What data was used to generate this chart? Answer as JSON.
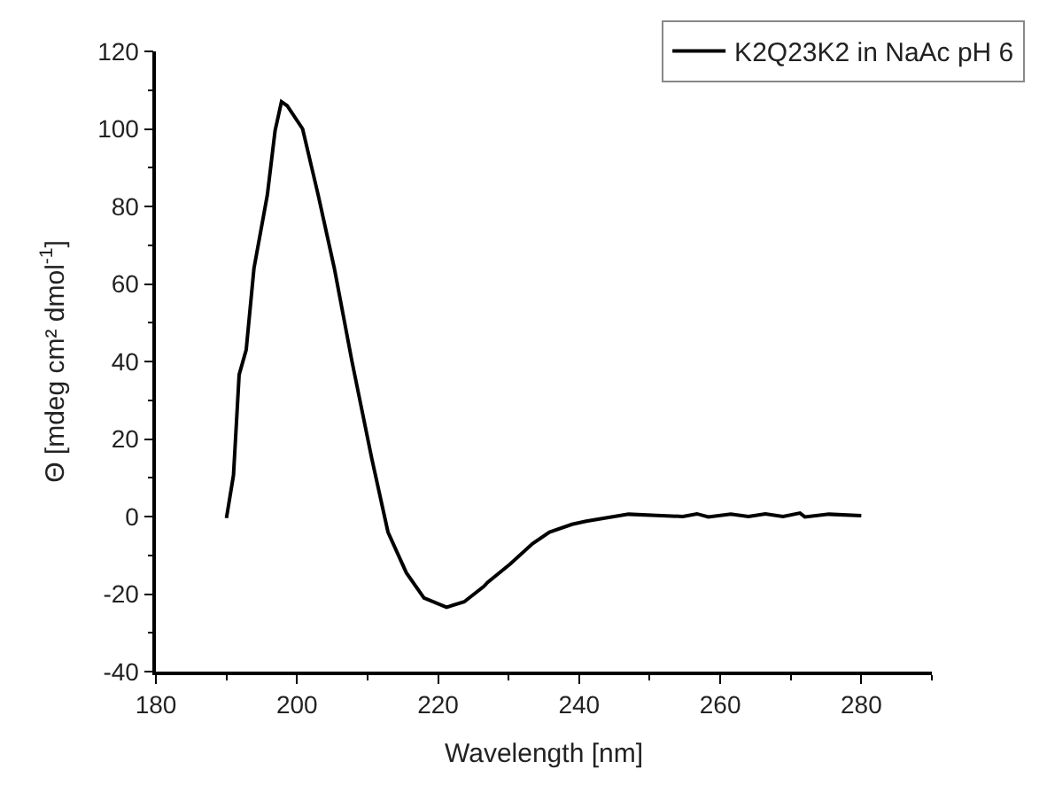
{
  "chart_data": {
    "type": "line",
    "xlabel": "Wavelength [nm]",
    "ylabel": "Θ [mdeg cm² dmol$^{-1}$]",
    "xlim": [
      180,
      290
    ],
    "xticks": [
      180,
      200,
      220,
      240,
      260,
      280
    ],
    "ylim": [
      -40,
      120
    ],
    "yticks": [
      -40,
      -20,
      0,
      20,
      40,
      60,
      80,
      100,
      120
    ],
    "legend": "top right",
    "series": [
      {
        "name": "K2Q23K2 in NaAc pH 6",
        "color": "#000000",
        "x": [
          190,
          191,
          191.8,
          192.8,
          193.9,
          195.8,
          196.9,
          197.8,
          198.6,
          200.8,
          203,
          205.3,
          207.8,
          210.6,
          212.9,
          215.5,
          218,
          221.2,
          223.7,
          226.5,
          227,
          230.2,
          233.4,
          235.8,
          239,
          241,
          247,
          251,
          254.7,
          256.7,
          258.3,
          261.5,
          264,
          266.4,
          268.9,
          271.3,
          272,
          275.4,
          280
        ],
        "values": [
          -0.4,
          10.7,
          36.6,
          43,
          64,
          83,
          99.6,
          107,
          106,
          100,
          83,
          64,
          40,
          15,
          -4,
          -14.5,
          -21,
          -23.4,
          -22,
          -18,
          -17,
          -12.3,
          -7,
          -4,
          -2,
          -1.2,
          0.6,
          0.3,
          0,
          0.7,
          -0.1,
          0.6,
          0,
          0.7,
          0,
          0.9,
          -0.1,
          0.6,
          0.2
        ]
      }
    ]
  }
}
